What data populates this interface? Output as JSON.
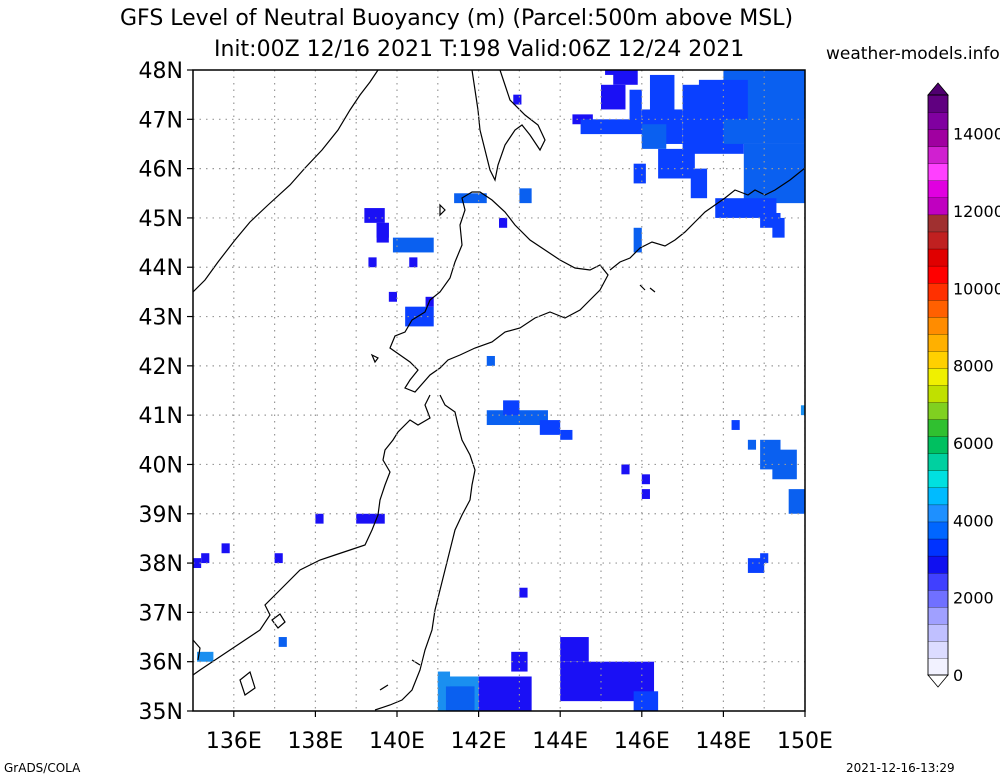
{
  "title": {
    "line1": "GFS Level of Neutral Buoyancy (m) (Parcel:500m above MSL)",
    "line2": "Init:00Z 12/16 2021 T:198 Valid:06Z 12/24 2021",
    "site": "weather-models.info"
  },
  "footer": {
    "left": "GrADS/COLA",
    "right": "2021-12-16-13:29"
  },
  "axes": {
    "lat_labels": [
      "48N",
      "47N",
      "46N",
      "45N",
      "44N",
      "43N",
      "42N",
      "41N",
      "40N",
      "39N",
      "38N",
      "37N",
      "36N",
      "35N"
    ],
    "lon_labels": [
      "136E",
      "138E",
      "140E",
      "142E",
      "144E",
      "146E",
      "148E",
      "150E"
    ],
    "lat_range": [
      35,
      48
    ],
    "lon_range": [
      135,
      150
    ]
  },
  "colorbar": {
    "labels": [
      "0",
      "2000",
      "4000",
      "6000",
      "8000",
      "10000",
      "12000",
      "14000"
    ],
    "label_values": [
      0,
      2000,
      4000,
      6000,
      8000,
      10000,
      12000,
      14000
    ],
    "colors": [
      "#f2f2ff",
      "#dcdcff",
      "#c0c0ff",
      "#a0a0ff",
      "#7070ff",
      "#4040ff",
      "#1010f0",
      "#0033ff",
      "#0066ff",
      "#1e90ff",
      "#00bbff",
      "#00e0e0",
      "#00d0a0",
      "#00c060",
      "#30c030",
      "#80d020",
      "#c0e000",
      "#f0f000",
      "#ffd000",
      "#ffb000",
      "#ff8c00",
      "#ff6000",
      "#ff3000",
      "#ff0000",
      "#e00000",
      "#c02020",
      "#a03030",
      "#c000c0",
      "#e000e0",
      "#ff40ff",
      "#d020d0",
      "#a000a0",
      "#8000a0",
      "#600080"
    ]
  },
  "field_colors": {
    "deep": "#1a10f5",
    "mid": "#0a40ff",
    "light": "#0a60f0",
    "cyan": "#1a8ff0"
  }
}
